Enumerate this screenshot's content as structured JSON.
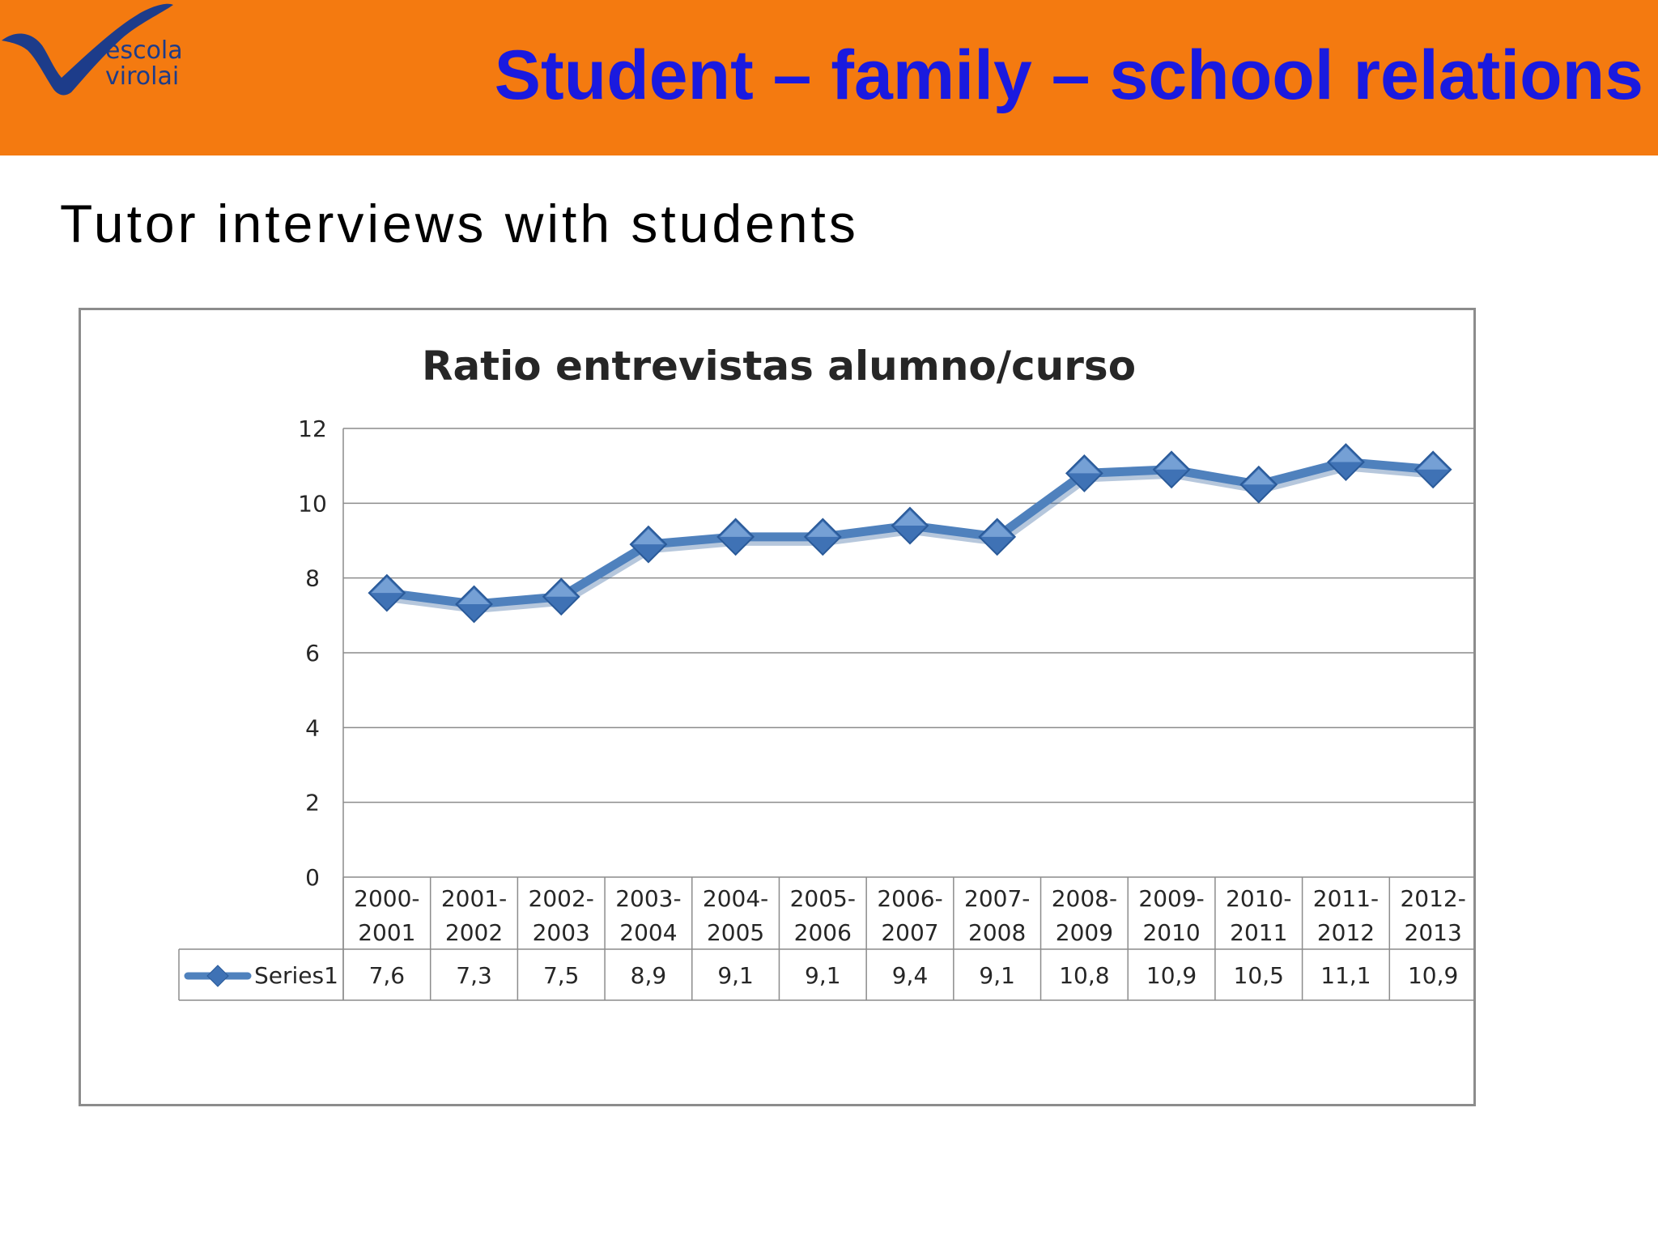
{
  "slide": {
    "title": "Student – family – school relations",
    "subtitle": "Tutor interviews with students",
    "logo": {
      "line1": "escola",
      "line2": "virolai"
    }
  },
  "colors": {
    "header": "#f47a10",
    "title": "#1a1adf",
    "series": "#4f81bd",
    "grid": "#8c8c8c"
  },
  "chart_data": {
    "type": "line",
    "title": "Ratio entrevistas alumno/curso",
    "categories": [
      [
        "2000-",
        "2001"
      ],
      [
        "2001-",
        "2002"
      ],
      [
        "2002-",
        "2003"
      ],
      [
        "2003-",
        "2004"
      ],
      [
        "2004-",
        "2005"
      ],
      [
        "2005-",
        "2006"
      ],
      [
        "2006-",
        "2007"
      ],
      [
        "2007-",
        "2008"
      ],
      [
        "2008-",
        "2009"
      ],
      [
        "2009-",
        "2010"
      ],
      [
        "2010-",
        "2011"
      ],
      [
        "2011-",
        "2012"
      ],
      [
        "2012-",
        "2013"
      ]
    ],
    "series": [
      {
        "name": "Series1",
        "values": [
          7.6,
          7.3,
          7.5,
          8.9,
          9.1,
          9.1,
          9.4,
          9.1,
          10.8,
          10.9,
          10.5,
          11.1,
          10.9
        ],
        "labels": [
          "7,6",
          "7,3",
          "7,5",
          "8,9",
          "9,1",
          "9,1",
          "9,4",
          "9,1",
          "10,8",
          "10,9",
          "10,5",
          "11,1",
          "10,9"
        ]
      }
    ],
    "ylim": [
      0,
      12
    ],
    "yticks": [
      "0",
      "2",
      "4",
      "6",
      "8",
      "10",
      "12"
    ],
    "grid": true,
    "marker": "diamond",
    "data_table": true
  }
}
